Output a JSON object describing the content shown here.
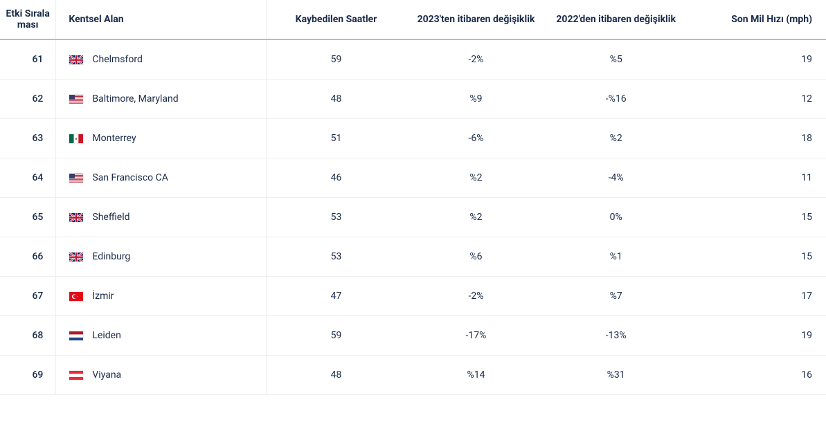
{
  "headers": {
    "rank": "Etki Sırala ması",
    "city": "Kentsel Alan",
    "hours": "Kaybedilen Saatler",
    "chg2023": "2023'ten itibaren değişiklik",
    "chg2022": "2022'den itibaren değişiklik",
    "speed": "Son Mil Hızı (mph)"
  },
  "flags": {
    "gb": {
      "svg": "<svg viewBox='0 0 60 40' xmlns='http://www.w3.org/2000/svg'><rect width='60' height='40' fill='#012169'/><path d='M0,0 L60,40 M60,0 L0,40' stroke='#fff' stroke-width='8'/><path d='M0,0 L60,40 M60,0 L0,40' stroke='#C8102E' stroke-width='3'/><path d='M30,0 V40 M0,20 H60' stroke='#fff' stroke-width='12'/><path d='M30,0 V40 M0,20 H60' stroke='#C8102E' stroke-width='7'/></svg>"
    },
    "us": {
      "svg": "<svg viewBox='0 0 60 40' xmlns='http://www.w3.org/2000/svg'><rect width='60' height='40' fill='#fff'/><rect width='60' height='3.08' y='0' fill='#B22234'/><rect width='60' height='3.08' y='6.15' fill='#B22234'/><rect width='60' height='3.08' y='12.31' fill='#B22234'/><rect width='60' height='3.08' y='18.46' fill='#B22234'/><rect width='60' height='3.08' y='24.62' fill='#B22234'/><rect width='60' height='3.08' y='30.77' fill='#B22234'/><rect width='60' height='3.08' y='36.92' fill='#B22234'/><rect width='24' height='21.5' fill='#3C3B6E'/></svg>"
    },
    "mx": {
      "svg": "<svg viewBox='0 0 60 40' xmlns='http://www.w3.org/2000/svg'><rect width='20' height='40' x='0' fill='#006847'/><rect width='20' height='40' x='20' fill='#fff'/><rect width='20' height='40' x='40' fill='#CE1126'/><circle cx='30' cy='20' r='4' fill='#8B6F47'/></svg>"
    },
    "tr": {
      "svg": "<svg viewBox='0 0 60 40' xmlns='http://www.w3.org/2000/svg'><rect width='60' height='40' fill='#E30A17'/><circle cx='22' cy='20' r='10' fill='#fff'/><circle cx='25' cy='20' r='8' fill='#E30A17'/><polygon points='32,20 36,18.5 33.5,22 33.5,18 36,21.5' fill='#fff'/></svg>"
    },
    "nl": {
      "svg": "<svg viewBox='0 0 60 40' xmlns='http://www.w3.org/2000/svg'><rect width='60' height='13.33' y='0' fill='#AE1C28'/><rect width='60' height='13.33' y='13.33' fill='#fff'/><rect width='60' height='13.34' y='26.66' fill='#21468B'/></svg>"
    },
    "at": {
      "svg": "<svg viewBox='0 0 60 40' xmlns='http://www.w3.org/2000/svg'><rect width='60' height='13.33' y='0' fill='#ED2939'/><rect width='60' height='13.33' y='13.33' fill='#fff'/><rect width='60' height='13.34' y='26.66' fill='#ED2939'/></svg>"
    }
  },
  "rows": [
    {
      "rank": "61",
      "flag": "gb",
      "city": "Chelmsford",
      "hours": "59",
      "chg2023": "-2%",
      "chg2022": "%5",
      "speed": "19"
    },
    {
      "rank": "62",
      "flag": "us",
      "city": "Baltimore, Maryland",
      "hours": "48",
      "chg2023": "%9",
      "chg2022": "-%16",
      "speed": "12"
    },
    {
      "rank": "63",
      "flag": "mx",
      "city": "Monterrey",
      "hours": "51",
      "chg2023": "-6%",
      "chg2022": "%2",
      "speed": "18"
    },
    {
      "rank": "64",
      "flag": "us",
      "city": "San Francisco CA",
      "hours": "46",
      "chg2023": "%2",
      "chg2022": "-4%",
      "speed": "11"
    },
    {
      "rank": "65",
      "flag": "gb",
      "city": "Sheffield",
      "hours": "53",
      "chg2023": "%2",
      "chg2022": "0%",
      "speed": "15"
    },
    {
      "rank": "66",
      "flag": "gb",
      "city": "Edinburg",
      "hours": "53",
      "chg2023": "%6",
      "chg2022": "%1",
      "speed": "15"
    },
    {
      "rank": "67",
      "flag": "tr",
      "city": "İzmir",
      "hours": "47",
      "chg2023": "-2%",
      "chg2022": "%7",
      "speed": "17"
    },
    {
      "rank": "68",
      "flag": "nl",
      "city": "Leiden",
      "hours": "59",
      "chg2023": "-17%",
      "chg2022": "-13%",
      "speed": "19"
    },
    {
      "rank": "69",
      "flag": "at",
      "city": "Viyana",
      "hours": "48",
      "chg2023": "%14",
      "chg2022": "%31",
      "speed": "16"
    }
  ],
  "colors": {
    "text": "#1a2b4a",
    "header_border": "#bbbbbb",
    "row_border": "#eeeeee",
    "background": "#ffffff"
  },
  "typography": {
    "header_fontsize": 14,
    "body_fontsize": 14,
    "header_fontweight": 700
  }
}
